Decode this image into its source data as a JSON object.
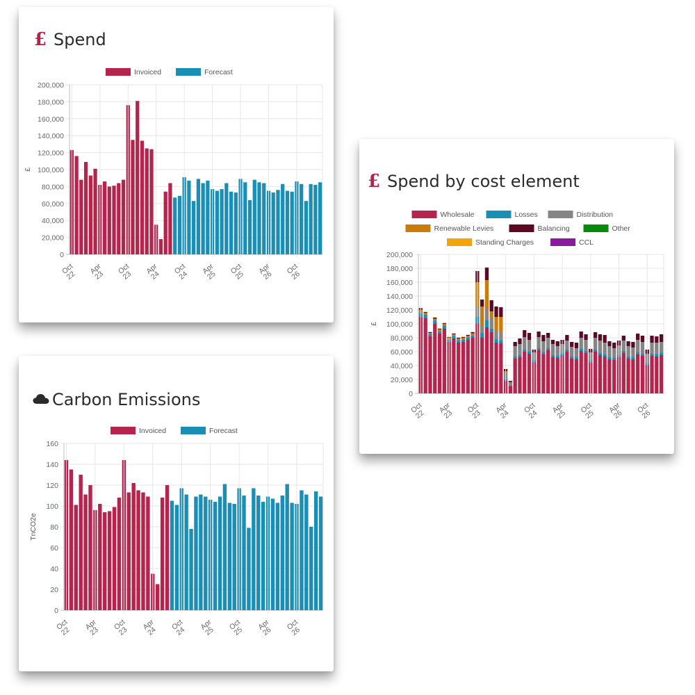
{
  "colors": {
    "invoiced": "#b5244c",
    "forecast": "#1a8fb5",
    "wholesale": "#b5244c",
    "losses": "#1a8fb5",
    "distribution": "#858585",
    "renewable_levies": "#c97c0a",
    "balancing": "#5c0a24",
    "other": "#0a8a0a",
    "standing_charges": "#f2a40a",
    "ccl": "#8a1a9e",
    "title_icon": "#b5244c"
  },
  "cards": {
    "spend": {
      "title": "Spend",
      "icon": "pound-icon",
      "icon_glyph": "£"
    },
    "cost_element": {
      "title": "Spend by cost element",
      "icon": "pound-icon",
      "icon_glyph": "£"
    },
    "carbon": {
      "title": "Carbon Emissions",
      "icon": "cloud-icon"
    }
  },
  "chart_data": [
    {
      "id": "spend",
      "type": "bar",
      "ylabel": "£",
      "ylim": [
        0,
        200000
      ],
      "yticks": [
        "0",
        "20,000",
        "40,000",
        "60,000",
        "80,000",
        "100,000",
        "120,000",
        "140,000",
        "160,000",
        "180,000",
        "200,000"
      ],
      "xticks": [
        [
          "Oct",
          "22"
        ],
        [
          "Apr",
          "23"
        ],
        [
          "Oct",
          "23"
        ],
        [
          "Apr",
          "24"
        ],
        [
          "Oct",
          "24"
        ],
        [
          "Apr",
          "25"
        ],
        [
          "Oct",
          "25"
        ],
        [
          "Apr",
          "26"
        ],
        [
          "Oct",
          "26"
        ]
      ],
      "legend": [
        "Invoiced",
        "Forecast"
      ],
      "legend_position": "top",
      "grid": true,
      "series": [
        {
          "name": "Invoiced",
          "values": [
            123000,
            116000,
            88000,
            109000,
            93000,
            101000,
            82000,
            86000,
            80000,
            81000,
            84000,
            88000,
            176000,
            135000,
            181000,
            134000,
            125000,
            124000,
            35000,
            18000,
            74000,
            84000
          ]
        },
        {
          "name": "Forecast",
          "values": [
            67000,
            69000,
            91000,
            87000,
            63000,
            89000,
            84000,
            87000,
            77000,
            75000,
            77000,
            84000,
            74000,
            73000,
            89000,
            85000,
            64000,
            88000,
            85000,
            84000,
            75000,
            73000,
            76000,
            83000,
            75000,
            74000,
            86000,
            83000,
            63000,
            83000,
            82000,
            85000
          ]
        }
      ]
    },
    {
      "id": "cost_element",
      "type": "bar",
      "stacked": true,
      "ylabel": "£",
      "ylim": [
        0,
        200000
      ],
      "yticks": [
        "0",
        "20,000",
        "40,000",
        "60,000",
        "80,000",
        "100,000",
        "120,000",
        "140,000",
        "160,000",
        "180,000",
        "200,000"
      ],
      "xticks": [
        [
          "Oct",
          "22"
        ],
        [
          "Apr",
          "23"
        ],
        [
          "Oct",
          "23"
        ],
        [
          "Apr",
          "24"
        ],
        [
          "Oct",
          "24"
        ],
        [
          "Apr",
          "25"
        ],
        [
          "Oct",
          "25"
        ],
        [
          "Apr",
          "26"
        ],
        [
          "Oct",
          "26"
        ]
      ],
      "legend": [
        "Wholesale",
        "Losses",
        "Distribution",
        "Renewable Levies",
        "Balancing",
        "Other",
        "Standing Charges",
        "CCL"
      ],
      "legend_position": "top",
      "grid": true,
      "series": [
        {
          "name": "Wholesale",
          "values": [
            110000,
            108000,
            82000,
            100000,
            86000,
            93000,
            74000,
            79000,
            73000,
            74000,
            77000,
            80000,
            100000,
            80000,
            95000,
            88000,
            73000,
            72000,
            18000,
            10000,
            50000,
            52000,
            60000,
            57000,
            45000,
            62000,
            56000,
            62000,
            52000,
            51000,
            55000,
            60000,
            50000,
            49000,
            61000,
            58000,
            44000,
            60000,
            55000,
            53000,
            49000,
            48000,
            52000,
            58000,
            50000,
            49000,
            56000,
            54000,
            40000,
            54000,
            53000,
            55000
          ]
        },
        {
          "name": "Losses",
          "values": [
            5000,
            5000,
            3000,
            4000,
            3000,
            4000,
            3000,
            3000,
            3000,
            3000,
            3000,
            3000,
            10000,
            7000,
            10000,
            5000,
            5000,
            4000,
            2000,
            1000,
            3000,
            3000,
            3000,
            3000,
            3000,
            3000,
            3000,
            3000,
            3000,
            3000,
            3000,
            3000,
            3000,
            3000,
            3000,
            3000,
            3000,
            3000,
            3000,
            3000,
            3000,
            3000,
            3000,
            3000,
            3000,
            3000,
            3000,
            3000,
            3000,
            3000,
            3000,
            3000
          ]
        },
        {
          "name": "Distribution",
          "values": [
            3000,
            1500,
            1000,
            2000,
            1500,
            1500,
            1500,
            1500,
            1500,
            1500,
            1500,
            1500,
            15000,
            10000,
            18000,
            15000,
            12000,
            12000,
            10000,
            5000,
            15000,
            16000,
            18000,
            17000,
            11000,
            16000,
            16000,
            15000,
            16000,
            14000,
            13000,
            13000,
            14000,
            13000,
            16000,
            16000,
            12000,
            17000,
            18000,
            17000,
            16000,
            14000,
            14000,
            15000,
            15000,
            14000,
            18000,
            17000,
            14000,
            16000,
            17000,
            16000
          ]
        },
        {
          "name": "Renewable Levies",
          "values": [
            2500,
            1500,
            1000,
            1500,
            1500,
            1500,
            1500,
            1500,
            1500,
            1500,
            1500,
            2000,
            35000,
            28000,
            40000,
            10000,
            20000,
            22000,
            2000,
            500,
            0,
            0,
            0,
            0,
            0,
            0,
            0,
            0,
            0,
            0,
            0,
            0,
            0,
            0,
            0,
            0,
            0,
            0,
            0,
            0,
            0,
            0,
            0,
            0,
            0,
            0,
            0,
            0,
            0,
            0,
            0,
            0
          ]
        },
        {
          "name": "Balancing",
          "values": [
            2000,
            1000,
            1000,
            1500,
            1000,
            1000,
            1000,
            1000,
            1000,
            1000,
            1000,
            1500,
            16000,
            10000,
            18000,
            16000,
            15000,
            14000,
            3000,
            1500,
            6000,
            8000,
            10000,
            10000,
            4000,
            8000,
            9000,
            7000,
            6000,
            7000,
            6000,
            8000,
            7000,
            8000,
            9000,
            8000,
            5000,
            8000,
            9000,
            11000,
            7000,
            8000,
            7000,
            7000,
            7000,
            8000,
            9000,
            9000,
            6000,
            10000,
            9000,
            11000
          ]
        },
        {
          "name": "Other",
          "values": [
            0,
            0,
            0,
            0,
            0,
            0,
            0,
            0,
            0,
            0,
            0,
            0,
            0,
            0,
            0,
            0,
            0,
            0,
            0,
            0,
            0,
            0,
            0,
            0,
            0,
            0,
            0,
            0,
            0,
            0,
            0,
            0,
            0,
            0,
            0,
            0,
            0,
            0,
            0,
            0,
            0,
            0,
            0,
            0,
            0,
            0,
            0,
            0,
            0,
            0,
            0,
            0
          ]
        },
        {
          "name": "Standing Charges",
          "values": [
            500,
            500,
            500,
            500,
            500,
            500,
            500,
            500,
            500,
            500,
            500,
            500,
            0,
            0,
            0,
            0,
            0,
            0,
            0,
            0,
            0,
            0,
            0,
            0,
            0,
            0,
            0,
            0,
            0,
            0,
            0,
            0,
            0,
            0,
            0,
            0,
            0,
            0,
            0,
            0,
            0,
            0,
            0,
            0,
            0,
            0,
            0,
            0,
            0,
            0,
            0,
            0
          ]
        },
        {
          "name": "CCL",
          "values": [
            0,
            0,
            0,
            0,
            0,
            0,
            0,
            0,
            0,
            0,
            0,
            0,
            0,
            0,
            0,
            0,
            0,
            0,
            0,
            0,
            0,
            0,
            0,
            0,
            0,
            0,
            0,
            0,
            0,
            0,
            0,
            0,
            0,
            0,
            0,
            0,
            0,
            0,
            0,
            0,
            0,
            0,
            0,
            0,
            0,
            0,
            0,
            0,
            0,
            0,
            0,
            0
          ]
        }
      ]
    },
    {
      "id": "carbon",
      "type": "bar",
      "ylabel": "TnCO2e",
      "ylim": [
        0,
        160
      ],
      "yticks": [
        "0",
        "20",
        "40",
        "60",
        "80",
        "100",
        "120",
        "140",
        "160"
      ],
      "xticks": [
        [
          "Oct",
          "22"
        ],
        [
          "Apr",
          "23"
        ],
        [
          "Oct",
          "23"
        ],
        [
          "Apr",
          "24"
        ],
        [
          "Oct",
          "24"
        ],
        [
          "Apr",
          "25"
        ],
        [
          "Oct",
          "25"
        ],
        [
          "Apr",
          "26"
        ],
        [
          "Oct",
          "26"
        ]
      ],
      "legend": [
        "Invoiced",
        "Forecast"
      ],
      "legend_position": "top",
      "grid": true,
      "series": [
        {
          "name": "Invoiced",
          "values": [
            144,
            135,
            101,
            130,
            111,
            120,
            96,
            102,
            94,
            95,
            99,
            108,
            144,
            113,
            122,
            115,
            113,
            109,
            35,
            25,
            108,
            120
          ]
        },
        {
          "name": "Forecast",
          "values": [
            105,
            101,
            117,
            111,
            78,
            109,
            111,
            109,
            106,
            104,
            109,
            121,
            103,
            102,
            117,
            110,
            79,
            117,
            110,
            104,
            109,
            107,
            103,
            110,
            121,
            103,
            102,
            115,
            111,
            80,
            114,
            109
          ]
        }
      ]
    }
  ]
}
